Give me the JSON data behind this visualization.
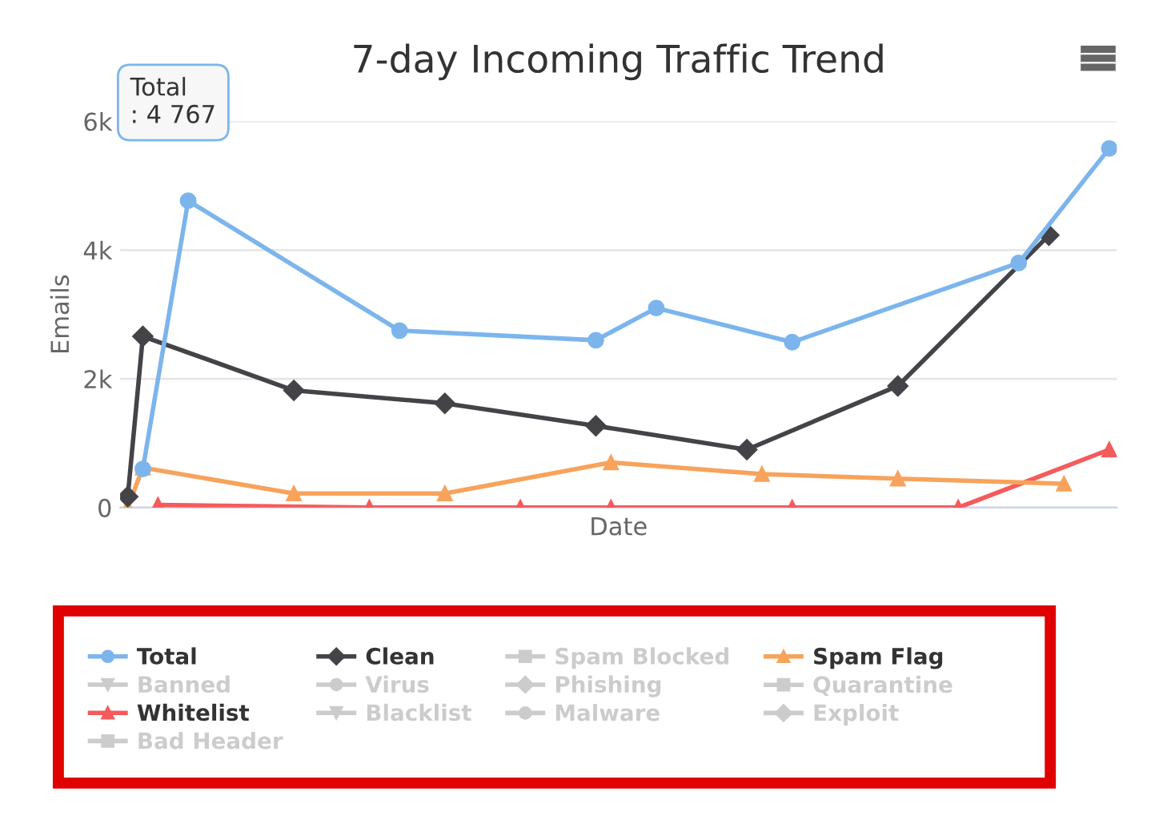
{
  "chart_data": {
    "type": "line",
    "title": "7-day Incoming Traffic Trend",
    "xlabel": "Date",
    "ylabel": "Emails",
    "categories": [
      null,
      null,
      null,
      null,
      null,
      null,
      null,
      null,
      null,
      null,
      null,
      null,
      null,
      null,
      null,
      null,
      null,
      null,
      null,
      null,
      null,
      null,
      null,
      null,
      null,
      null,
      null,
      null,
      null,
      null,
      null,
      null,
      null,
      null,
      null,
      null,
      null,
      null,
      null,
      null,
      null,
      null,
      null,
      null,
      null,
      null,
      null,
      null,
      null,
      null,
      null,
      null,
      null,
      null,
      null,
      null,
      null,
      null,
      null,
      null,
      null,
      null,
      null,
      null,
      null,
      null
    ],
    "ylim": [
      0,
      6000
    ],
    "yticks": [
      0,
      {
        "value": 2000,
        "label": "2k"
      },
      {
        "value": 4000,
        "label": "4k"
      },
      {
        "value": 6000,
        "label": "6k"
      }
    ],
    "tick_labels": "y",
    "grid": "y",
    "legend": "bottom",
    "line_style": "solid",
    "annotations": [
      "Total\n: 4 767"
    ],
    "series": [
      {
        "name": "Total",
        "color": "#7cb5ec",
        "marker": "circle",
        "values": [
          null,
          600,
          null,
          null,
          4767,
          null,
          null,
          null,
          null,
          null,
          null,
          null,
          null,
          null,
          null,
          null,
          null,
          null,
          2750,
          null,
          null,
          null,
          null,
          null,
          null,
          null,
          null,
          null,
          null,
          null,
          null,
          2600,
          null,
          null,
          null,
          3100,
          null,
          null,
          null,
          null,
          null,
          null,
          null,
          null,
          2570,
          null,
          null,
          null,
          null,
          null,
          null,
          null,
          null,
          null,
          null,
          null,
          null,
          null,
          null,
          3800,
          null,
          null,
          null,
          null,
          null,
          5580
        ]
      },
      {
        "name": "Clean",
        "color": "#434348",
        "marker": "diamond",
        "values": [
          170,
          2660,
          null,
          null,
          null,
          null,
          null,
          null,
          null,
          null,
          null,
          1820,
          null,
          null,
          null,
          null,
          null,
          null,
          null,
          null,
          null,
          1620,
          null,
          null,
          null,
          null,
          null,
          null,
          null,
          null,
          null,
          1270,
          null,
          null,
          null,
          null,
          null,
          null,
          null,
          null,
          null,
          900,
          null,
          null,
          null,
          null,
          null,
          null,
          null,
          null,
          null,
          1890,
          null,
          null,
          null,
          null,
          null,
          null,
          null,
          null,
          null,
          4230,
          null,
          null,
          null,
          null
        ]
      },
      {
        "name": "Spam Blocked",
        "color": "#cccccc",
        "marker": "square",
        "values": [
          null,
          null,
          null,
          null,
          null,
          null,
          null,
          null,
          null,
          null,
          null,
          null,
          null,
          null,
          null,
          null,
          null,
          null,
          null,
          null,
          null,
          null,
          null,
          null,
          null,
          null,
          null,
          null,
          null,
          null,
          null,
          null,
          null,
          null,
          null,
          null,
          null,
          null,
          null,
          null,
          null,
          null,
          null,
          null,
          null,
          null,
          null,
          null,
          null,
          null,
          null,
          null,
          null,
          null,
          null,
          null,
          null,
          null,
          null,
          null,
          null,
          null,
          null,
          null,
          null,
          null
        ]
      },
      {
        "name": "Spam Flag",
        "color": "#f7a35c",
        "marker": "triangle",
        "values": [
          0,
          620,
          null,
          null,
          null,
          null,
          null,
          null,
          null,
          null,
          null,
          220,
          null,
          null,
          null,
          null,
          null,
          null,
          null,
          null,
          null,
          220,
          null,
          null,
          null,
          null,
          null,
          null,
          null,
          null,
          null,
          null,
          700,
          null,
          null,
          null,
          null,
          null,
          null,
          null,
          null,
          null,
          520,
          null,
          null,
          null,
          null,
          null,
          null,
          null,
          null,
          450,
          null,
          null,
          null,
          null,
          null,
          null,
          null,
          null,
          null,
          null,
          370,
          null,
          null,
          null
        ]
      },
      {
        "name": "Banned",
        "color": "#cccccc",
        "marker": "triangle_down",
        "values": [
          null,
          null,
          null,
          null,
          null,
          null,
          null,
          null,
          null,
          null,
          null,
          null,
          null,
          null,
          null,
          null,
          null,
          null,
          null,
          null,
          null,
          null,
          null,
          null,
          null,
          null,
          null,
          null,
          null,
          null,
          null,
          null,
          null,
          null,
          null,
          null,
          null,
          null,
          null,
          null,
          null,
          null,
          null,
          null,
          null,
          null,
          null,
          null,
          null,
          null,
          null,
          null,
          null,
          null,
          null,
          null,
          null,
          null,
          null,
          null,
          null,
          null,
          null,
          null,
          null,
          null
        ]
      },
      {
        "name": "Virus",
        "color": "#cccccc",
        "marker": "circle",
        "values": [
          null,
          null,
          null,
          null,
          null,
          null,
          null,
          null,
          null,
          null,
          null,
          null,
          null,
          null,
          null,
          null,
          null,
          null,
          null,
          null,
          null,
          null,
          null,
          null,
          null,
          null,
          null,
          null,
          null,
          null,
          null,
          null,
          null,
          null,
          null,
          null,
          null,
          null,
          null,
          null,
          null,
          null,
          null,
          null,
          null,
          null,
          null,
          null,
          null,
          null,
          null,
          null,
          null,
          null,
          null,
          null,
          null,
          null,
          null,
          null,
          null,
          null,
          null,
          null,
          null,
          null
        ]
      },
      {
        "name": "Phishing",
        "color": "#cccccc",
        "marker": "diamond",
        "values": [
          null,
          null,
          null,
          null,
          null,
          null,
          null,
          null,
          null,
          null,
          null,
          null,
          null,
          null,
          null,
          null,
          null,
          null,
          null,
          null,
          null,
          null,
          null,
          null,
          null,
          null,
          null,
          null,
          null,
          null,
          null,
          null,
          null,
          null,
          null,
          null,
          null,
          null,
          null,
          null,
          null,
          null,
          null,
          null,
          null,
          null,
          null,
          null,
          null,
          null,
          null,
          null,
          null,
          null,
          null,
          null,
          null,
          null,
          null,
          null,
          null,
          null,
          null,
          null,
          null,
          null
        ]
      },
      {
        "name": "Quarantine",
        "color": "#cccccc",
        "marker": "square",
        "values": [
          null,
          null,
          null,
          null,
          null,
          null,
          null,
          null,
          null,
          null,
          null,
          null,
          null,
          null,
          null,
          null,
          null,
          null,
          null,
          null,
          null,
          null,
          null,
          null,
          null,
          null,
          null,
          null,
          null,
          null,
          null,
          null,
          null,
          null,
          null,
          null,
          null,
          null,
          null,
          null,
          null,
          null,
          null,
          null,
          null,
          null,
          null,
          null,
          null,
          null,
          null,
          null,
          null,
          null,
          null,
          null,
          null,
          null,
          null,
          null,
          null,
          null,
          null,
          null,
          null,
          null
        ]
      },
      {
        "name": "Whitelist",
        "color": "#f45b5b",
        "marker": "triangle",
        "values": [
          null,
          null,
          40,
          null,
          null,
          null,
          null,
          null,
          null,
          null,
          null,
          null,
          null,
          null,
          null,
          null,
          0,
          null,
          null,
          null,
          null,
          null,
          null,
          null,
          null,
          null,
          0,
          null,
          null,
          null,
          null,
          null,
          0,
          null,
          null,
          null,
          null,
          null,
          null,
          null,
          null,
          null,
          null,
          null,
          0,
          null,
          null,
          null,
          null,
          null,
          null,
          null,
          null,
          null,
          null,
          0,
          null,
          null,
          null,
          null,
          null,
          null,
          null,
          null,
          null,
          900
        ]
      },
      {
        "name": "Blacklist",
        "color": "#cccccc",
        "marker": "triangle_down",
        "values": [
          null,
          null,
          null,
          null,
          null,
          null,
          null,
          null,
          null,
          null,
          null,
          null,
          null,
          null,
          null,
          null,
          null,
          null,
          null,
          null,
          null,
          null,
          null,
          null,
          null,
          null,
          null,
          null,
          null,
          null,
          null,
          null,
          null,
          null,
          null,
          null,
          null,
          null,
          null,
          null,
          null,
          null,
          null,
          null,
          null,
          null,
          null,
          null,
          null,
          null,
          null,
          null,
          null,
          null,
          null,
          null,
          null,
          null,
          null,
          null,
          null,
          null,
          null,
          null,
          null,
          null
        ]
      },
      {
        "name": "Malware",
        "color": "#cccccc",
        "marker": "circle",
        "values": [
          null,
          null,
          null,
          null,
          null,
          null,
          null,
          null,
          null,
          null,
          null,
          null,
          null,
          null,
          null,
          null,
          null,
          null,
          null,
          null,
          null,
          null,
          null,
          null,
          null,
          null,
          null,
          null,
          null,
          null,
          null,
          null,
          null,
          null,
          null,
          null,
          null,
          null,
          null,
          null,
          null,
          null,
          null,
          null,
          null,
          null,
          null,
          null,
          null,
          null,
          null,
          null,
          null,
          null,
          null,
          null,
          null,
          null,
          null,
          null,
          null,
          null,
          null,
          null,
          null,
          null
        ]
      },
      {
        "name": "Exploit",
        "color": "#cccccc",
        "marker": "diamond",
        "values": [
          null,
          null,
          null,
          null,
          null,
          null,
          null,
          null,
          null,
          null,
          null,
          null,
          null,
          null,
          null,
          null,
          null,
          null,
          null,
          null,
          null,
          null,
          null,
          null,
          null,
          null,
          null,
          null,
          null,
          null,
          null,
          null,
          null,
          null,
          null,
          null,
          null,
          null,
          null,
          null,
          null,
          null,
          null,
          null,
          null,
          null,
          null,
          null,
          null,
          null,
          null,
          null,
          null,
          null,
          null,
          null,
          null,
          null,
          null,
          null,
          null,
          null,
          null,
          null,
          null,
          null
        ]
      },
      {
        "name": "Bad Header",
        "color": "#cccccc",
        "marker": "square",
        "values": [
          null,
          null,
          null,
          null,
          null,
          null,
          null,
          null,
          null,
          null,
          null,
          null,
          null,
          null,
          null,
          null,
          null,
          null,
          null,
          null,
          null,
          null,
          null,
          null,
          null,
          null,
          null,
          null,
          null,
          null,
          null,
          null,
          null,
          null,
          null,
          null,
          null,
          null,
          null,
          null,
          null,
          null,
          null,
          null,
          null,
          null,
          null,
          null,
          null,
          null,
          null,
          null,
          null,
          null,
          null,
          null,
          null,
          null,
          null,
          null,
          null,
          null,
          null,
          null,
          null,
          null
        ]
      }
    ]
  }
}
